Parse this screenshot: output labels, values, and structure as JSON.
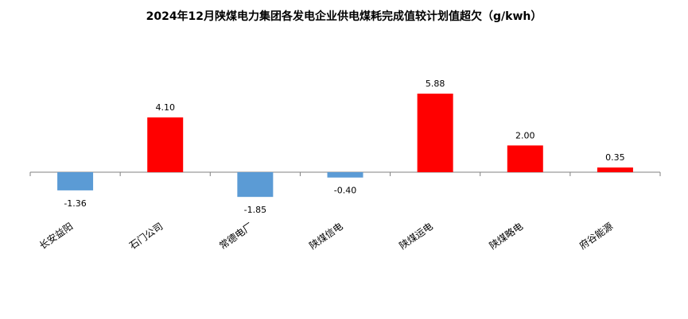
{
  "chart_data": {
    "type": "bar",
    "title": "2024年12月陕煤电力集团各发电企业供电煤耗完成值较计划值超欠（g/kwh）",
    "categories": [
      "长安益阳",
      "石门公司",
      "常德电厂",
      "陕煤信电",
      "陕煤运电",
      "陕煤略电",
      "府谷能源"
    ],
    "values": [
      -1.36,
      4.1,
      -1.85,
      -0.4,
      5.88,
      2.0,
      0.35
    ],
    "value_labels": [
      "-1.36",
      "4.10",
      "-1.85",
      "-0.40",
      "5.88",
      "2.00",
      "0.35"
    ],
    "xlabel": "",
    "ylabel": "",
    "ylim": [
      -2.5,
      7.5
    ],
    "grid": false,
    "legend": "none",
    "colors": {
      "positive": "#ff0000",
      "negative": "#5b9bd5",
      "axis": "#808080"
    }
  }
}
